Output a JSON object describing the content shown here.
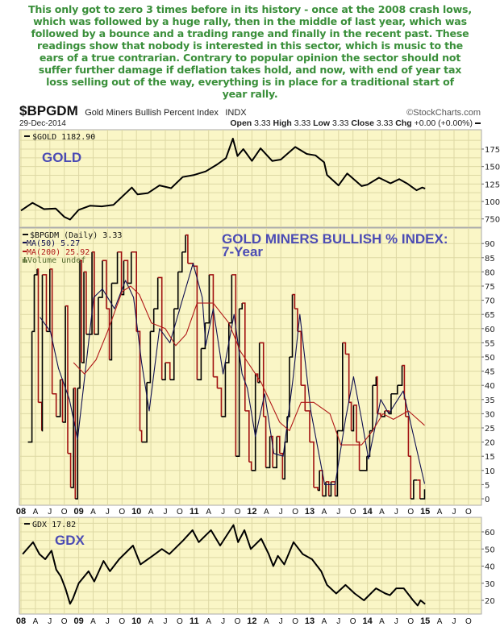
{
  "commentary": [
    "This only got to zero 3 times before in its history - once at the 2008 crash lows,",
    "which was followed by a huge rally, then in the middle of last year, which was",
    "followed by a bounce and a trading range and finally in the recent past. These",
    "readings show that nobody is interested in this sector, which is music to the",
    "ears of a true contrarian. Contrary to popular opinion the sector should not",
    "suffer further damage if deflation takes hold, and now, with end of year tax",
    "loss selling out of the way, everything is in place for a traditional start of",
    "year rally."
  ],
  "header": {
    "symbol": "$BPGDM",
    "name": "Gold Miners Bullish Percent Index",
    "exchange": "INDX",
    "watermark": "©StockCharts.com",
    "date": "29-Dec-2014",
    "open_label": "Open",
    "open": "3.33",
    "high_label": "High",
    "high": "3.33",
    "low_label": "Low",
    "low": "3.33",
    "close_label": "Close",
    "close": "3.33",
    "chg_label": "Chg",
    "chg": "+0.00 (+0.00%)"
  },
  "colors": {
    "panel_bg": "#faf6c6",
    "grid": "#ddd8a4",
    "annotation": "#4b4bb4",
    "commentary": "#3a8f3a",
    "price_up": "#000000",
    "price_down": "#a01010",
    "ma50": "#101050",
    "ma200": "#b01818"
  },
  "chart_data": [
    {
      "type": "line",
      "annotation": "GOLD",
      "legend": "$GOLD 1182.90",
      "ylim": [
        680,
        1950
      ],
      "yticks": [
        750,
        1000,
        1250,
        1500,
        1750
      ],
      "series": [
        {
          "name": "$GOLD",
          "x": [
            2008.0,
            2008.2,
            2008.4,
            2008.6,
            2008.75,
            2008.85,
            2009.0,
            2009.2,
            2009.4,
            2009.6,
            2009.92,
            2010.02,
            2010.2,
            2010.4,
            2010.6,
            2010.8,
            2011.0,
            2011.2,
            2011.4,
            2011.55,
            2011.67,
            2011.75,
            2011.85,
            2012.0,
            2012.15,
            2012.35,
            2012.5,
            2012.75,
            2012.95,
            2013.1,
            2013.25,
            2013.3,
            2013.5,
            2013.65,
            2013.9,
            2014.0,
            2014.2,
            2014.4,
            2014.55,
            2014.7,
            2014.85,
            2014.95,
            2015.0
          ],
          "y": [
            870,
            980,
            890,
            900,
            780,
            740,
            880,
            940,
            930,
            950,
            1200,
            1100,
            1120,
            1230,
            1190,
            1350,
            1380,
            1430,
            1530,
            1620,
            1900,
            1650,
            1750,
            1580,
            1760,
            1580,
            1600,
            1780,
            1680,
            1660,
            1560,
            1380,
            1230,
            1400,
            1220,
            1240,
            1340,
            1260,
            1320,
            1250,
            1160,
            1200,
            1183
          ]
        }
      ]
    },
    {
      "type": "line",
      "title": "GOLD MINERS BULLISH % INDEX:",
      "subtitle": "7-Year",
      "legend": [
        "$BPGDM (Daily) 3.33",
        "MA(50) 5.27",
        "MA(200) 25.92",
        "Volume undef"
      ],
      "ylim": [
        0,
        90
      ],
      "yticks": [
        0,
        5,
        10,
        15,
        20,
        25,
        30,
        35,
        40,
        45,
        50,
        55,
        60,
        65,
        70,
        75,
        80,
        85,
        90
      ],
      "series": [
        {
          "name": "$BPGDM (Daily)",
          "x": [
            2008.12,
            2008.19,
            2008.23,
            2008.28,
            2008.3,
            2008.36,
            2008.37,
            2008.44,
            2008.5,
            2008.54,
            2008.61,
            2008.68,
            2008.72,
            2008.77,
            2008.81,
            2008.86,
            2008.91,
            2008.94,
            2008.98,
            2009.02,
            2009.05,
            2009.09,
            2009.13,
            2009.23,
            2009.27,
            2009.34,
            2009.41,
            2009.48,
            2009.53,
            2009.57,
            2009.67,
            2009.74,
            2009.78,
            2009.85,
            2009.91,
            2010.0,
            2010.06,
            2010.09,
            2010.18,
            2010.24,
            2010.3,
            2010.37,
            2010.44,
            2010.5,
            2010.58,
            2010.65,
            2010.72,
            2010.79,
            2010.85,
            2010.89,
            2010.98,
            2011.05,
            2011.12,
            2011.19,
            2011.26,
            2011.33,
            2011.4,
            2011.47,
            2011.54,
            2011.6,
            2011.65,
            2011.72,
            2011.78,
            2011.83,
            2011.88,
            2011.95,
            2011.99,
            2012.06,
            2012.1,
            2012.13,
            2012.2,
            2012.24,
            2012.31,
            2012.36,
            2012.43,
            2012.48,
            2012.53,
            2012.57,
            2012.61,
            2012.65,
            2012.7,
            2012.74,
            2012.79,
            2012.85,
            2012.92,
            2013.0,
            2013.07,
            2013.14,
            2013.17,
            2013.22,
            2013.28,
            2013.33,
            2013.37,
            2013.44,
            2013.48,
            2013.54,
            2013.57,
            2013.62,
            2013.68,
            2013.72,
            2013.76,
            2013.81,
            2013.86,
            2013.95,
            2013.99,
            2014.04,
            2014.09,
            2014.15,
            2014.17,
            2014.23,
            2014.3,
            2014.37,
            2014.41,
            2014.52,
            2014.6,
            2014.64,
            2014.66,
            2014.71,
            2014.75,
            2014.8,
            2014.86,
            2014.91,
            2014.99
          ],
          "y": [
            20,
            59,
            79,
            81,
            34,
            24,
            79,
            59,
            81,
            37,
            29,
            42,
            27,
            68,
            16,
            4,
            39,
            0,
            39,
            84,
            48,
            80,
            58,
            87,
            58,
            71,
            84,
            67,
            49,
            76,
            87,
            72,
            84,
            76,
            87,
            59,
            24,
            20,
            41,
            59,
            67,
            78,
            42,
            48,
            42,
            67,
            80,
            87,
            93,
            83,
            82,
            42,
            53,
            62,
            79,
            43,
            39,
            29,
            48,
            62,
            79,
            15,
            67,
            69,
            31,
            13,
            10,
            44,
            41,
            55,
            29,
            11,
            22,
            11,
            22,
            16,
            7,
            20,
            29,
            50,
            72,
            67,
            59,
            40,
            31,
            20,
            4,
            3,
            10,
            1,
            6,
            1,
            6,
            1,
            24,
            24,
            55,
            51,
            34,
            24,
            33,
            20,
            10,
            10,
            15,
            24,
            40,
            43,
            30,
            29,
            31,
            30,
            37,
            40,
            47,
            35,
            29,
            15,
            0,
            6.6,
            6.6,
            0,
            3.33
          ]
        },
        {
          "name": "MA(50)",
          "x": [
            2008.33,
            2008.51,
            2008.65,
            2008.84,
            2008.98,
            2009.12,
            2009.26,
            2009.41,
            2009.62,
            2009.81,
            2009.95,
            2010.09,
            2010.22,
            2010.4,
            2010.58,
            2010.78,
            2010.98,
            2011.14,
            2011.2,
            2011.33,
            2011.5,
            2011.69,
            2011.83,
            2011.92,
            2012.06,
            2012.22,
            2012.38,
            2012.54,
            2012.71,
            2012.83,
            2013.02,
            2013.26,
            2013.44,
            2013.62,
            2013.76,
            2013.9,
            2014.02,
            2014.23,
            2014.37,
            2014.62,
            2014.99
          ],
          "y": [
            64,
            59,
            46,
            35,
            21,
            46,
            71,
            74,
            67,
            77,
            71,
            48,
            31,
            60,
            55,
            69,
            83,
            71,
            54,
            67,
            44,
            65,
            44,
            39,
            22,
            37,
            16,
            15,
            42,
            65,
            31,
            5,
            5,
            28,
            43,
            28,
            14,
            35,
            30,
            38,
            5.27
          ]
        },
        {
          "name": "MA(200)",
          "x": [
            2008.91,
            2009.1,
            2009.3,
            2009.5,
            2009.75,
            2009.9,
            2010.05,
            2010.26,
            2010.5,
            2010.68,
            2010.86,
            2011.05,
            2011.33,
            2011.6,
            2011.8,
            2012.16,
            2012.48,
            2012.65,
            2012.85,
            2013.07,
            2013.35,
            2013.54,
            2013.9,
            2014.09,
            2014.27,
            2014.45,
            2014.71,
            2014.99
          ],
          "y": [
            48,
            44,
            49,
            59,
            73,
            75,
            72,
            62,
            60,
            54,
            58,
            69,
            69,
            62,
            52,
            41,
            27,
            24,
            34,
            34,
            30,
            19,
            19,
            24,
            30,
            28,
            31,
            25.92
          ]
        }
      ]
    },
    {
      "type": "line",
      "annotation": "GDX",
      "legend": "GDX 17.82",
      "ylim": [
        13,
        67
      ],
      "yticks": [
        20,
        30,
        40,
        50,
        60
      ],
      "series": [
        {
          "name": "GDX",
          "x": [
            2008.03,
            2008.21,
            2008.32,
            2008.42,
            2008.53,
            2008.61,
            2008.69,
            2008.77,
            2008.85,
            2008.9,
            2009.0,
            2009.17,
            2009.27,
            2009.43,
            2009.54,
            2009.7,
            2009.94,
            2010.07,
            2010.28,
            2010.44,
            2010.57,
            2010.81,
            2010.97,
            2011.08,
            2011.29,
            2011.45,
            2011.68,
            2011.76,
            2011.87,
            2011.98,
            2012.16,
            2012.29,
            2012.37,
            2012.45,
            2012.56,
            2012.72,
            2012.88,
            2013.04,
            2013.2,
            2013.3,
            2013.46,
            2013.62,
            2013.78,
            2013.94,
            2014.15,
            2014.31,
            2014.39,
            2014.5,
            2014.63,
            2014.79,
            2014.87,
            2014.92,
            2015.0
          ],
          "y": [
            47,
            54,
            47,
            44,
            49,
            38,
            34,
            27,
            18,
            21,
            30,
            37,
            31,
            43,
            37,
            44,
            52,
            41,
            46,
            50,
            47,
            55,
            61,
            54,
            61,
            52,
            64,
            54,
            61,
            50,
            56,
            47,
            40,
            46,
            41,
            54,
            47,
            44,
            37,
            29,
            24,
            29,
            24,
            20,
            27,
            24,
            23,
            27,
            27,
            20,
            17,
            20,
            17.82
          ]
        }
      ]
    }
  ],
  "x_axis": {
    "labels": [
      {
        "t": "08",
        "year": 2008.0,
        "major": true
      },
      {
        "t": "A",
        "year": 2008.25
      },
      {
        "t": "J",
        "year": 2008.5
      },
      {
        "t": "O",
        "year": 2008.75
      },
      {
        "t": "09",
        "year": 2009.0,
        "major": true
      },
      {
        "t": "A",
        "year": 2009.25
      },
      {
        "t": "J",
        "year": 2009.5
      },
      {
        "t": "O",
        "year": 2009.75
      },
      {
        "t": "10",
        "year": 2010.0,
        "major": true
      },
      {
        "t": "A",
        "year": 2010.25
      },
      {
        "t": "J",
        "year": 2010.5
      },
      {
        "t": "O",
        "year": 2010.75
      },
      {
        "t": "11",
        "year": 2011.0,
        "major": true
      },
      {
        "t": "A",
        "year": 2011.25
      },
      {
        "t": "J",
        "year": 2011.5
      },
      {
        "t": "O",
        "year": 2011.75
      },
      {
        "t": "12",
        "year": 2012.0,
        "major": true
      },
      {
        "t": "A",
        "year": 2012.25
      },
      {
        "t": "J",
        "year": 2012.5
      },
      {
        "t": "O",
        "year": 2012.75
      },
      {
        "t": "13",
        "year": 2013.0,
        "major": true
      },
      {
        "t": "A",
        "year": 2013.25
      },
      {
        "t": "J",
        "year": 2013.5
      },
      {
        "t": "O",
        "year": 2013.75
      },
      {
        "t": "14",
        "year": 2014.0,
        "major": true
      },
      {
        "t": "A",
        "year": 2014.25
      },
      {
        "t": "J",
        "year": 2014.5
      },
      {
        "t": "O",
        "year": 2014.75
      },
      {
        "t": "15",
        "year": 2015.0,
        "major": true
      },
      {
        "t": "A",
        "year": 2015.25
      },
      {
        "t": "J",
        "year": 2015.5
      },
      {
        "t": "O",
        "year": 2015.75
      }
    ]
  }
}
